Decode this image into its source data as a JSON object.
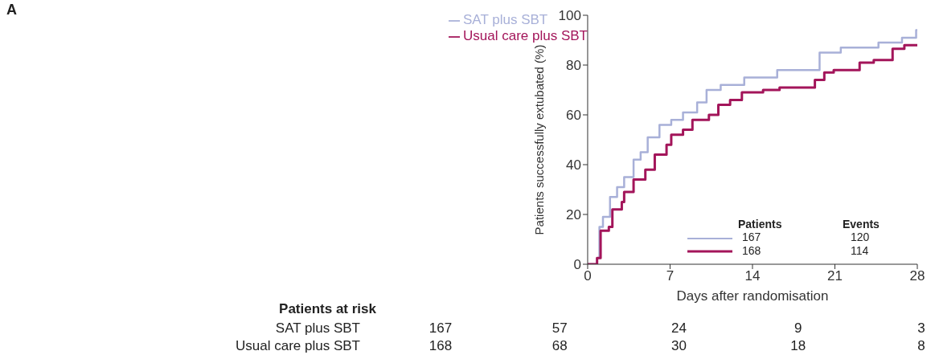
{
  "chart_data": {
    "type": "step",
    "xlabel": "Days after randomisation",
    "ylabel": "Patients successfully extubated (%)",
    "xlim": [
      0,
      28
    ],
    "xticks": [
      0,
      7,
      14,
      21,
      28
    ],
    "ylim": [
      0,
      100
    ],
    "yticks": [
      0,
      20,
      40,
      60,
      80,
      100
    ],
    "grid": false,
    "legend": "top left",
    "marker": "none",
    "line_style": "solid",
    "series": [
      {
        "name": "SAT plus SBT",
        "color": "#a8b0d8",
        "x": [
          0,
          0.8,
          1.0,
          1.3,
          1.9,
          2.5,
          3.1,
          3.9,
          4.5,
          5.1,
          6.1,
          7.1,
          8.1,
          9.3,
          10.1,
          11.3,
          13.3,
          16.1,
          19.7,
          21.5,
          24.7,
          26.7,
          27.9,
          28
        ],
        "values": [
          0,
          2.5,
          15,
          19,
          27,
          31,
          35,
          42,
          45,
          51,
          56,
          58,
          61,
          65,
          70,
          72,
          75,
          78,
          85,
          87,
          89,
          91,
          94,
          94
        ]
      },
      {
        "name": "Usual care plus SBT",
        "color": "#a3155a",
        "x": [
          0,
          0.8,
          1.1,
          1.8,
          2.1,
          2.9,
          3.1,
          3.9,
          4.9,
          5.7,
          6.7,
          7.1,
          8.1,
          8.9,
          10.3,
          11.1,
          12.1,
          13.1,
          14.9,
          16.3,
          19.3,
          20.1,
          20.9,
          23.1,
          24.3,
          25.9,
          26.9,
          28
        ],
        "values": [
          0,
          2.5,
          13.5,
          15,
          22,
          25,
          29,
          34,
          38,
          44,
          48,
          52,
          54,
          58,
          60,
          64,
          66,
          69,
          70,
          71,
          74,
          77,
          78,
          81,
          82,
          86.5,
          88,
          88
        ]
      }
    ],
    "annotations": [
      "A",
      "Patients at risk",
      "SAT plus SBT",
      "167",
      "57",
      "24",
      "9",
      "3",
      "Usual care plus SBT",
      "168",
      "68",
      "30",
      "18",
      "8",
      "Patients",
      "Events",
      "167",
      "120",
      "168",
      "114"
    ]
  }
}
